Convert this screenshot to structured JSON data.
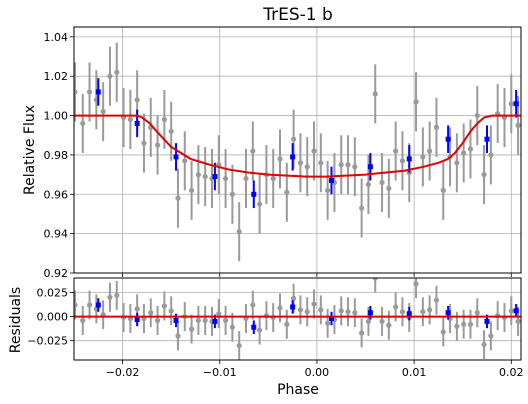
{
  "colors": {
    "raw": "#9a9a9a",
    "binned": "#0000ff",
    "model": "#e00000",
    "grid": "#b0b0b0"
  },
  "chart_data": [
    {
      "panel": "flux",
      "type": "scatter",
      "title": "TrES-1 b",
      "xlabel": "",
      "ylabel": "Relative Flux",
      "xlim": [
        -0.025,
        0.021
      ],
      "ylim": [
        0.92,
        1.045
      ],
      "xticks": [
        -0.02,
        -0.01,
        0.0,
        0.01,
        0.02
      ],
      "yticks": [
        0.92,
        0.94,
        0.96,
        0.98,
        1.0,
        1.02,
        1.04
      ],
      "xtick_labels": [
        "",
        "",
        "",
        "",
        ""
      ],
      "ytick_labels": [
        "0.92",
        "0.94",
        "0.96",
        "0.98",
        "1.00",
        "1.02",
        "1.04"
      ],
      "grid": true,
      "raw": {
        "x": [
          -0.0249,
          -0.0241,
          -0.0234,
          -0.0227,
          -0.022,
          -0.0213,
          -0.0206,
          -0.0199,
          -0.0192,
          -0.0185,
          -0.0178,
          -0.0171,
          -0.0164,
          -0.0157,
          -0.015,
          -0.0143,
          -0.0136,
          -0.0129,
          -0.0122,
          -0.0115,
          -0.0108,
          -0.0101,
          -0.0094,
          -0.0087,
          -0.008,
          -0.0073,
          -0.0066,
          -0.0059,
          -0.0052,
          -0.0045,
          -0.0038,
          -0.0031,
          -0.0024,
          -0.0017,
          -0.001,
          -0.0003,
          0.0004,
          0.0011,
          0.0018,
          0.0025,
          0.0032,
          0.0039,
          0.0046,
          0.0053,
          0.006,
          0.0067,
          0.0074,
          0.0081,
          0.0088,
          0.0095,
          0.0102,
          0.0109,
          0.0116,
          0.0123,
          0.013,
          0.0137,
          0.0144,
          0.0151,
          0.0158,
          0.0165,
          0.0172,
          0.0179,
          0.0186,
          0.0193,
          0.02,
          0.0207
        ],
        "y": [
          1.012,
          0.996,
          1.012,
          1.008,
          1.002,
          1.02,
          1.022,
          0.999,
          0.998,
          1.008,
          0.986,
          0.994,
          0.985,
          0.998,
          0.992,
          0.958,
          0.977,
          0.962,
          0.97,
          0.969,
          0.968,
          0.975,
          0.968,
          0.96,
          0.941,
          0.968,
          0.982,
          0.955,
          0.97,
          0.968,
          0.978,
          0.961,
          0.988,
          0.976,
          0.974,
          0.982,
          0.976,
          0.962,
          0.966,
          0.975,
          0.975,
          0.974,
          0.953,
          0.965,
          1.011,
          0.966,
          0.963,
          0.982,
          0.977,
          0.971,
          1.007,
          0.979,
          0.982,
          0.994,
          0.962,
          0.979,
          0.976,
          0.981,
          0.983,
          1.0,
          0.97,
          0.98,
          1.001,
          0.999,
          1.006,
          0.995
        ],
        "err": [
          0.015,
          0.015,
          0.015,
          0.015,
          0.015,
          0.015,
          0.015,
          0.015,
          0.015,
          0.015,
          0.015,
          0.015,
          0.015,
          0.015,
          0.015,
          0.015,
          0.015,
          0.015,
          0.015,
          0.015,
          0.015,
          0.015,
          0.015,
          0.015,
          0.015,
          0.015,
          0.015,
          0.015,
          0.015,
          0.015,
          0.015,
          0.015,
          0.015,
          0.015,
          0.015,
          0.015,
          0.015,
          0.015,
          0.015,
          0.015,
          0.015,
          0.015,
          0.015,
          0.015,
          0.015,
          0.015,
          0.015,
          0.015,
          0.015,
          0.015,
          0.015,
          0.015,
          0.015,
          0.015,
          0.015,
          0.015,
          0.015,
          0.015,
          0.015,
          0.015,
          0.015,
          0.015,
          0.015,
          0.015,
          0.015,
          0.015
        ]
      },
      "binned": {
        "x": [
          -0.0225,
          -0.0185,
          -0.0145,
          -0.0105,
          -0.0065,
          -0.0025,
          0.0015,
          0.0055,
          0.0095,
          0.0135,
          0.0175,
          0.0205
        ],
        "y": [
          1.012,
          0.996,
          0.979,
          0.969,
          0.96,
          0.979,
          0.967,
          0.974,
          0.978,
          0.988,
          0.988,
          1.006
        ],
        "err": [
          0.007,
          0.007,
          0.007,
          0.007,
          0.007,
          0.007,
          0.007,
          0.007,
          0.007,
          0.007,
          0.007,
          0.007
        ]
      },
      "model": {
        "x": [
          -0.025,
          -0.0185,
          -0.018,
          -0.0172,
          -0.0165,
          -0.015,
          -0.013,
          -0.011,
          -0.009,
          -0.007,
          -0.005,
          -0.003,
          -0.001,
          0.001,
          0.003,
          0.005,
          0.007,
          0.009,
          0.011,
          0.0125,
          0.0135,
          0.0142,
          0.015,
          0.0158,
          0.0165,
          0.0172,
          0.018,
          0.021
        ],
        "y": [
          1.0,
          1.0,
          0.999,
          0.996,
          0.992,
          0.984,
          0.978,
          0.975,
          0.9725,
          0.971,
          0.97,
          0.9695,
          0.969,
          0.969,
          0.9695,
          0.97,
          0.971,
          0.972,
          0.974,
          0.976,
          0.978,
          0.981,
          0.986,
          0.992,
          0.996,
          0.999,
          1.0,
          1.0
        ]
      }
    },
    {
      "panel": "residuals",
      "type": "scatter",
      "xlabel": "Phase",
      "ylabel": "Residuals",
      "xlim": [
        -0.025,
        0.021
      ],
      "ylim": [
        -0.045,
        0.04
      ],
      "xticks": [
        -0.02,
        -0.01,
        0.0,
        0.01,
        0.02
      ],
      "yticks": [
        -0.025,
        0.0,
        0.025
      ],
      "xtick_labels": [
        "−0.02",
        "−0.01",
        "0.00",
        "0.01",
        "0.02"
      ],
      "ytick_labels": [
        "−0.025",
        "0.000",
        "0.025"
      ],
      "grid": true,
      "raw": {
        "x": [
          -0.0249,
          -0.0241,
          -0.0234,
          -0.0227,
          -0.022,
          -0.0213,
          -0.0206,
          -0.0199,
          -0.0192,
          -0.0185,
          -0.0178,
          -0.0171,
          -0.0164,
          -0.0157,
          -0.015,
          -0.0143,
          -0.0136,
          -0.0129,
          -0.0122,
          -0.0115,
          -0.0108,
          -0.0101,
          -0.0094,
          -0.0087,
          -0.008,
          -0.0073,
          -0.0066,
          -0.0059,
          -0.0052,
          -0.0045,
          -0.0038,
          -0.0031,
          -0.0024,
          -0.0017,
          -0.001,
          -0.0003,
          0.0004,
          0.0011,
          0.0018,
          0.0025,
          0.0032,
          0.0039,
          0.0046,
          0.0053,
          0.006,
          0.0067,
          0.0074,
          0.0081,
          0.0088,
          0.0095,
          0.0102,
          0.0109,
          0.0116,
          0.0123,
          0.013,
          0.0137,
          0.0144,
          0.0151,
          0.0158,
          0.0165,
          0.0172,
          0.0179,
          0.0186,
          0.0193,
          0.02,
          0.0207
        ],
        "y": [
          0.012,
          -0.004,
          0.012,
          0.008,
          0.002,
          0.02,
          0.022,
          -0.001,
          -0.002,
          0.008,
          -0.002,
          0.004,
          -0.004,
          0.011,
          0.006,
          -0.02,
          0.0,
          -0.013,
          -0.004,
          -0.004,
          -0.005,
          0.003,
          -0.004,
          -0.011,
          -0.03,
          -0.002,
          0.012,
          -0.014,
          0.001,
          -0.001,
          0.009,
          -0.008,
          0.019,
          0.007,
          0.005,
          0.013,
          0.007,
          -0.007,
          -0.003,
          0.006,
          0.005,
          0.004,
          -0.017,
          -0.005,
          0.04,
          -0.005,
          -0.009,
          0.01,
          0.005,
          -0.001,
          0.034,
          0.005,
          0.007,
          0.017,
          -0.016,
          -0.002,
          -0.01,
          -0.008,
          -0.008,
          0.004,
          -0.029,
          -0.02,
          0.001,
          -0.001,
          0.006,
          -0.005
        ],
        "err": [
          0.015,
          0.015,
          0.015,
          0.015,
          0.015,
          0.015,
          0.015,
          0.015,
          0.015,
          0.015,
          0.015,
          0.015,
          0.015,
          0.015,
          0.015,
          0.015,
          0.015,
          0.015,
          0.015,
          0.015,
          0.015,
          0.015,
          0.015,
          0.015,
          0.015,
          0.015,
          0.015,
          0.015,
          0.015,
          0.015,
          0.015,
          0.015,
          0.015,
          0.015,
          0.015,
          0.015,
          0.015,
          0.015,
          0.015,
          0.015,
          0.015,
          0.015,
          0.015,
          0.015,
          0.015,
          0.015,
          0.015,
          0.015,
          0.015,
          0.015,
          0.015,
          0.015,
          0.015,
          0.015,
          0.015,
          0.015,
          0.015,
          0.015,
          0.015,
          0.015,
          0.015,
          0.015,
          0.015,
          0.015,
          0.015,
          0.015
        ]
      },
      "binned": {
        "x": [
          -0.0225,
          -0.0185,
          -0.0145,
          -0.0105,
          -0.0065,
          -0.0025,
          0.0015,
          0.0055,
          0.0095,
          0.0135,
          0.0175,
          0.0205
        ],
        "y": [
          0.012,
          -0.003,
          -0.004,
          -0.005,
          -0.011,
          0.01,
          -0.002,
          0.004,
          0.003,
          0.004,
          -0.005,
          0.006
        ],
        "err": [
          0.007,
          0.007,
          0.007,
          0.007,
          0.007,
          0.007,
          0.007,
          0.007,
          0.007,
          0.007,
          0.007,
          0.007
        ]
      },
      "zero_line": 0.0
    }
  ]
}
